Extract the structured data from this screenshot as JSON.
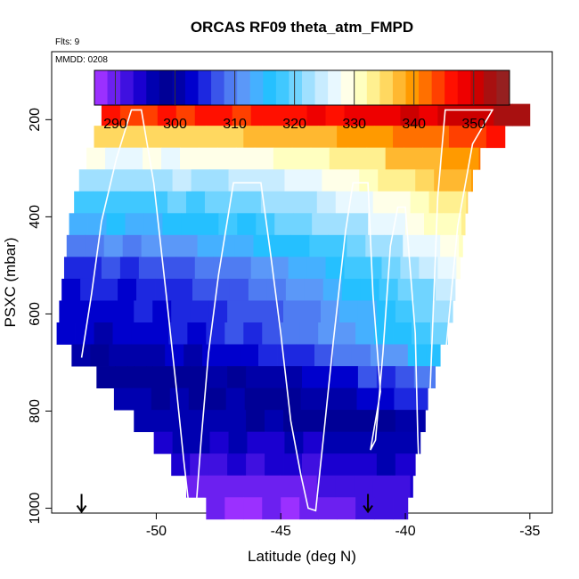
{
  "chart_data": {
    "type": "heatmap",
    "title": "ORCAS RF09 theta_atm_FMPD",
    "top_left_note": "Flts: 9",
    "inset_note": "MMDD: 0208",
    "xlabel": "Latitude (deg N)",
    "ylabel": "PSXC (mbar)",
    "xlim": [
      -54.2,
      -34.1
    ],
    "ylim": [
      1010,
      60
    ],
    "x_ticks": [
      -50,
      -45,
      -40,
      -35
    ],
    "x_tick_labels": [
      "-50",
      "-45",
      "-40",
      "-35"
    ],
    "y_ticks": [
      200,
      400,
      600,
      800,
      1000
    ],
    "y_tick_labels": [
      "200",
      "400",
      "600",
      "800",
      "1000"
    ],
    "colorbar": {
      "min": 286.5,
      "max": 356,
      "ticks": [
        290,
        300,
        310,
        320,
        330,
        340,
        350
      ],
      "tick_labels": [
        "290",
        "300",
        "310",
        "320",
        "330",
        "340",
        "350"
      ],
      "colors": [
        "#9b30ff",
        "#6c20f0",
        "#3f10e0",
        "#1a00d0",
        "#0000b0",
        "#000096",
        "#0000a8",
        "#0000cd",
        "#1d28e0",
        "#3a55ea",
        "#4f7cf2",
        "#5b98f8",
        "#45b0ff",
        "#25c0ff",
        "#40c8ff",
        "#70d4ff",
        "#a0e0ff",
        "#c8ecff",
        "#e8f8ff",
        "#ffffe8",
        "#ffffc0",
        "#fff090",
        "#ffd860",
        "#ffb830",
        "#ff9a00",
        "#ff7000",
        "#ff4000",
        "#ff1000",
        "#ee0000",
        "#cc0000",
        "#a81010",
        "#962020"
      ]
    },
    "pressure_levels": [
      190,
      235,
      280,
      325,
      370,
      415,
      460,
      505,
      550,
      595,
      640,
      685,
      730,
      775,
      820,
      865,
      910,
      955,
      1000
    ],
    "level_lat_min": [
      -52.2,
      -52.5,
      -52.8,
      -53.1,
      -53.3,
      -53.5,
      -53.6,
      -53.7,
      -53.8,
      -53.9,
      -54.0,
      -53.4,
      -52.4,
      -51.7,
      -50.9,
      -50.1,
      -49.4,
      -48.8,
      -48.0
    ],
    "level_lat_max": [
      -35.0,
      -36.0,
      -37.0,
      -37.3,
      -37.5,
      -37.6,
      -37.7,
      -37.8,
      -38.0,
      -38.1,
      -38.3,
      -38.6,
      -38.8,
      -39.1,
      -39.2,
      -39.4,
      -39.6,
      -39.7,
      -39.9
    ],
    "level_theta_west": [
      345,
      335,
      327,
      322,
      318,
      314,
      310,
      306,
      304,
      303,
      302,
      300,
      298,
      297,
      296,
      295,
      293,
      290,
      288
    ],
    "level_theta_east": [
      353,
      347,
      342,
      339,
      336,
      333,
      331,
      328,
      325,
      323,
      321,
      317,
      310,
      305,
      301,
      297,
      295,
      293,
      293
    ],
    "cell_width_deg": 0.75,
    "flight_track": [
      [
        -53.0,
        690
      ],
      [
        -52.6,
        560
      ],
      [
        -52.2,
        410
      ],
      [
        -51.6,
        280
      ],
      [
        -51.0,
        180
      ],
      [
        -50.6,
        180
      ],
      [
        -50.1,
        330
      ],
      [
        -49.6,
        560
      ],
      [
        -49.2,
        750
      ],
      [
        -48.9,
        900
      ],
      [
        -48.7,
        990
      ],
      [
        -48.4,
        995
      ],
      [
        -48.2,
        860
      ],
      [
        -47.9,
        680
      ],
      [
        -47.5,
        520
      ],
      [
        -46.9,
        330
      ],
      [
        -45.8,
        330
      ],
      [
        -45.4,
        480
      ],
      [
        -45.0,
        640
      ],
      [
        -44.6,
        820
      ],
      [
        -44.2,
        930
      ],
      [
        -43.9,
        1000
      ],
      [
        -43.6,
        1005
      ],
      [
        -43.3,
        860
      ],
      [
        -42.9,
        660
      ],
      [
        -42.4,
        430
      ],
      [
        -42.1,
        330
      ],
      [
        -41.5,
        330
      ],
      [
        -41.3,
        560
      ],
      [
        -41.0,
        760
      ],
      [
        -41.4,
        880
      ],
      [
        -41.2,
        860
      ],
      [
        -40.9,
        680
      ],
      [
        -40.6,
        460
      ],
      [
        -40.3,
        380
      ],
      [
        -40.0,
        380
      ],
      [
        -39.6,
        640
      ],
      [
        -39.5,
        850
      ],
      [
        -39.4,
        990
      ],
      [
        -39.3,
        995
      ],
      [
        -39.1,
        880
      ],
      [
        -38.9,
        620
      ],
      [
        -38.7,
        360
      ],
      [
        -38.4,
        180
      ],
      [
        -37.0,
        180
      ],
      [
        -36.5,
        180
      ],
      [
        -37.3,
        250
      ],
      [
        -37.9,
        420
      ],
      [
        -38.4,
        690
      ]
    ],
    "markers": [
      {
        "lat": -53.0,
        "symbol": "down-arrow"
      },
      {
        "lat": -41.5,
        "symbol": "down-arrow"
      }
    ]
  }
}
